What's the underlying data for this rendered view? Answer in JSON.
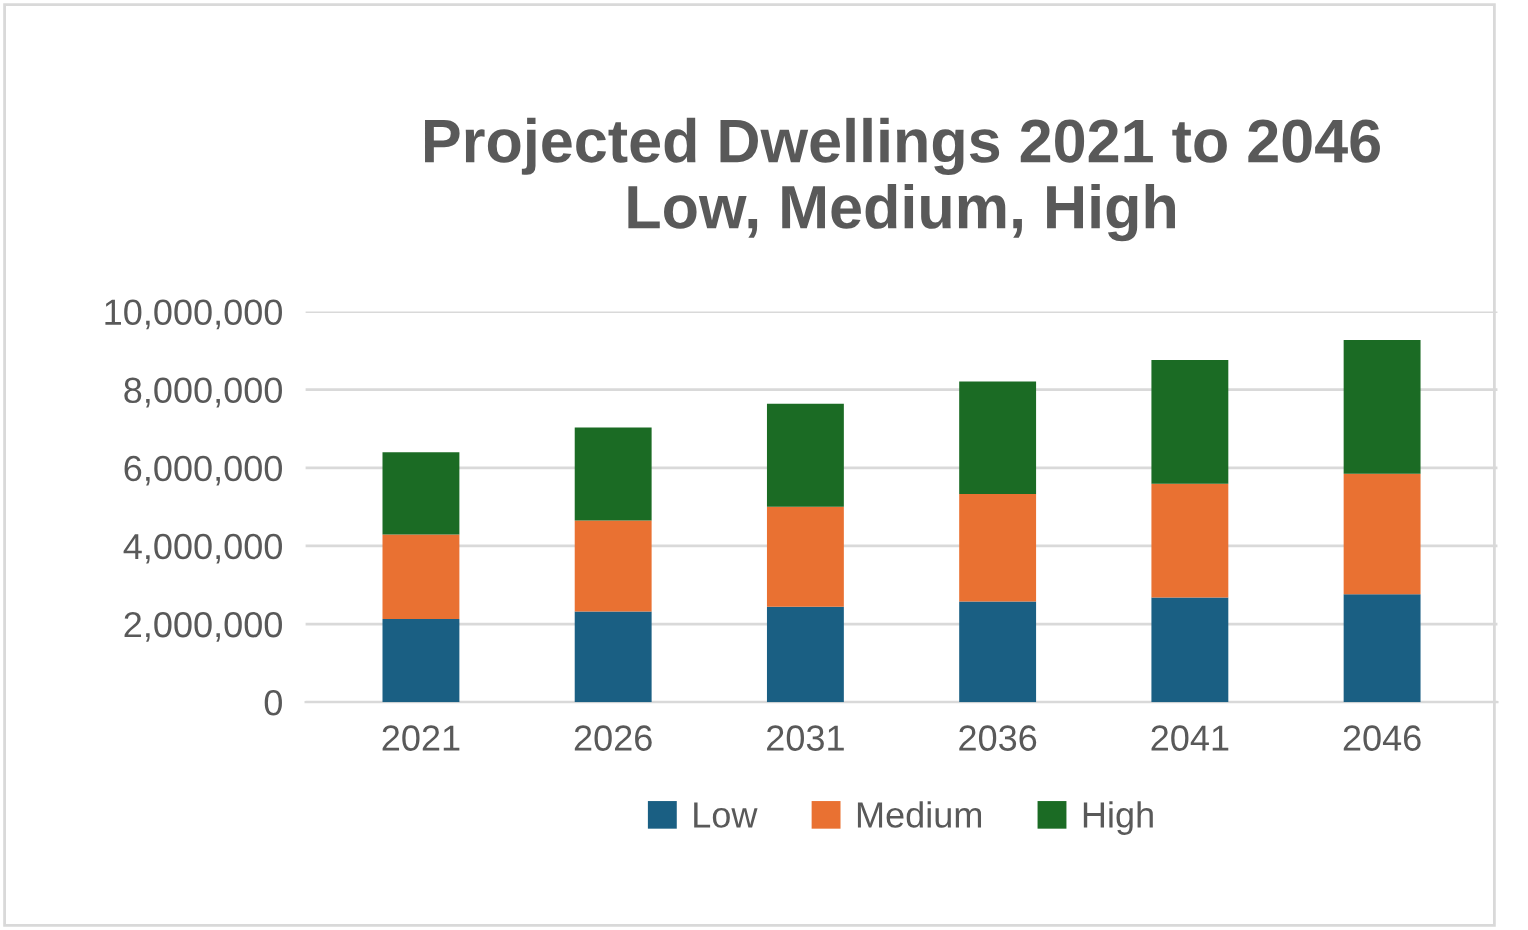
{
  "chart_data": {
    "type": "bar",
    "stacked": true,
    "title": "Projected Dwellings 2021 to 2046\nLow, Medium, High",
    "categories": [
      "2021",
      "2026",
      "2031",
      "2036",
      "2041",
      "2046"
    ],
    "series": [
      {
        "name": "Low",
        "color": "#1a5f83",
        "values": [
          2130000,
          2320000,
          2440000,
          2580000,
          2680000,
          2760000
        ]
      },
      {
        "name": "Medium",
        "color": "#e97132",
        "values": [
          2160000,
          2330000,
          2560000,
          2750000,
          2910000,
          3090000
        ]
      },
      {
        "name": "High",
        "color": "#1b6b24",
        "values": [
          2110000,
          2380000,
          2640000,
          2880000,
          3170000,
          3420000
        ]
      }
    ],
    "ylim": [
      0,
      10000000
    ],
    "yticks": [
      {
        "value": 0,
        "label": "0"
      },
      {
        "value": 2000000,
        "label": "2,000,000"
      },
      {
        "value": 4000000,
        "label": "4,000,000"
      },
      {
        "value": 6000000,
        "label": "6,000,000"
      },
      {
        "value": 8000000,
        "label": "8,000,000"
      },
      {
        "value": 10000000,
        "label": "10,000,000"
      }
    ],
    "grid": "y",
    "legend": "bottom"
  }
}
